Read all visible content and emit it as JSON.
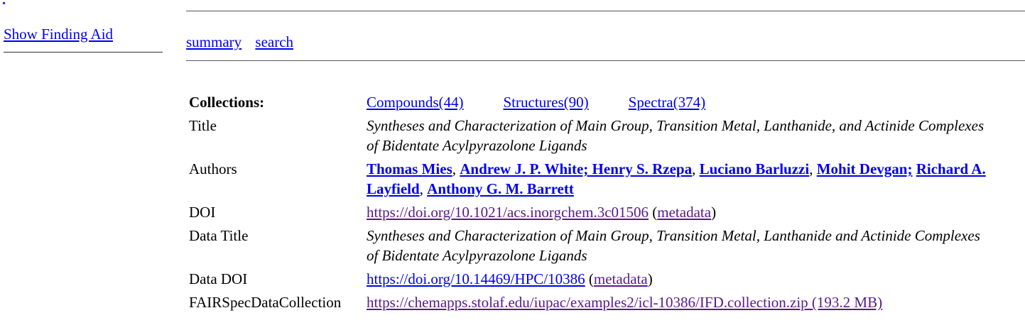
{
  "sidebar": {
    "show_finding_aid": "Show Finding Aid"
  },
  "nav": {
    "summary": "summary",
    "search": "search"
  },
  "collections": {
    "label": "Collections:",
    "compounds": "Compounds(44)",
    "structures": "Structures(90)",
    "spectra": "Spectra(374)"
  },
  "title": {
    "label": "Title",
    "value": "Syntheses and Characterization of Main Group, Transition Metal, Lanthanide, and Actinide Complexes of Bidentate Acylpyrazolone Ligands"
  },
  "authors": {
    "label": "Authors",
    "names": [
      "Thomas Mies",
      "Andrew J. P. White; Henry S. Rzepa",
      "Luciano Barluzzi",
      "Mohit Devgan;",
      "Richard A. Layfield",
      "Anthony G. M. Barrett"
    ],
    "separator": ", "
  },
  "doi": {
    "label": "DOI",
    "link": "https://doi.org/10.1021/acs.inorgchem.3c01506",
    "metadata": "metadata"
  },
  "data_title": {
    "label": "Data Title",
    "value": "Syntheses and Characterization of Main Group, Transition Metal, Lanthanide and Actinide Complexes of Bidentate Acylpyrazolone Ligands"
  },
  "data_doi": {
    "label": "Data DOI",
    "link": "https://doi.org/10.14469/HPC/10386",
    "metadata": "metadata"
  },
  "fair_collection": {
    "label": "FAIRSpecDataCollection",
    "link": "https://chemapps.stolaf.edu/iupac/examples2/icl-10386/IFD.collection.zip (193.2 MB)"
  },
  "colors": {
    "link": "#0000ee",
    "visited_link": "#551a8b",
    "rule": "#555555"
  }
}
